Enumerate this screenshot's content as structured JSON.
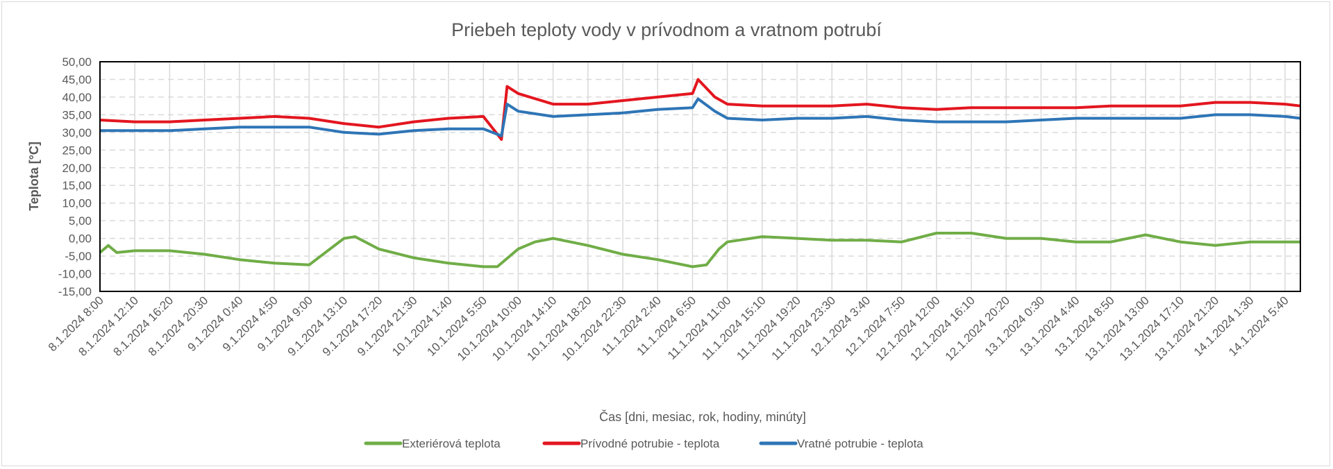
{
  "chart_data": {
    "type": "line",
    "title": "Priebeh teploty vody v prívodnom a vratnom potrubí",
    "xlabel": "Čas [dni, mesiac, rok, hodiny, minúty]",
    "ylabel": "Teplota [°C]",
    "ylim": [
      -15,
      50
    ],
    "ytick_step": 5,
    "ytick_labels": [
      "50,00",
      "45,00",
      "40,00",
      "35,00",
      "30,00",
      "25,00",
      "20,00",
      "15,00",
      "10,00",
      "5,00",
      "0,00",
      "-5,00",
      "-10,00",
      "-15,00"
    ],
    "xlim": [
      "8.1.2024 8:00",
      "14.1.2024 7:30"
    ],
    "xtick_labels": [
      "8.1.2024 8:00",
      "8.1.2024 12:10",
      "8.1.2024 16:20",
      "8.1.2024 20:30",
      "9.1.2024 0:40",
      "9.1.2024 4:50",
      "9.1.2024 9:00",
      "9.1.2024 13:10",
      "9.1.2024 17:20",
      "9.1.2024 21:30",
      "10.1.2024 1:40",
      "10.1.2024 5:50",
      "10.1.2024 10:00",
      "10.1.2024 14:10",
      "10.1.2024 18:20",
      "10.1.2024 22:30",
      "11.1.2024 2:40",
      "11.1.2024 6:50",
      "11.1.2024 11:00",
      "11.1.2024 15:10",
      "11.1.2024 19:20",
      "11.1.2024 23:30",
      "12.1.2024 3:40",
      "12.1.2024 7:50",
      "12.1.2024 12:00",
      "12.1.2024 16:10",
      "12.1.2024 20:20",
      "13.1.2024 0:30",
      "13.1.2024 4:40",
      "13.1.2024 8:50",
      "13.1.2024 13:00",
      "13.1.2024 17:10",
      "13.1.2024 21:20",
      "14.1.2024 1:30",
      "14.1.2024 5:40"
    ],
    "grid": {
      "horizontal": "dashed",
      "vertical": "solid"
    },
    "legend_position": "bottom",
    "series": [
      {
        "name": "Exteriérová teplota",
        "color": "#70ad47",
        "points": [
          [
            "8.1.2024 8:00",
            -4
          ],
          [
            "8.1.2024 9:00",
            -2
          ],
          [
            "8.1.2024 10:00",
            -4
          ],
          [
            "8.1.2024 12:10",
            -3.5
          ],
          [
            "8.1.2024 16:20",
            -3.5
          ],
          [
            "8.1.2024 20:30",
            -4.5
          ],
          [
            "9.1.2024 0:40",
            -6
          ],
          [
            "9.1.2024 4:50",
            -7
          ],
          [
            "9.1.2024 9:00",
            -7.5
          ],
          [
            "9.1.2024 13:10",
            0
          ],
          [
            "9.1.2024 14:30",
            0.5
          ],
          [
            "9.1.2024 17:20",
            -3
          ],
          [
            "9.1.2024 21:30",
            -5.5
          ],
          [
            "10.1.2024 1:40",
            -7
          ],
          [
            "10.1.2024 5:50",
            -8
          ],
          [
            "10.1.2024 7:30",
            -8
          ],
          [
            "10.1.2024 10:00",
            -3
          ],
          [
            "10.1.2024 12:00",
            -1
          ],
          [
            "10.1.2024 14:10",
            0
          ],
          [
            "10.1.2024 18:20",
            -2
          ],
          [
            "10.1.2024 22:30",
            -4.5
          ],
          [
            "11.1.2024 2:40",
            -6
          ],
          [
            "11.1.2024 6:50",
            -8
          ],
          [
            "11.1.2024 8:30",
            -7.5
          ],
          [
            "11.1.2024 10:00",
            -3
          ],
          [
            "11.1.2024 11:00",
            -1
          ],
          [
            "11.1.2024 15:10",
            0.5
          ],
          [
            "11.1.2024 19:20",
            0
          ],
          [
            "11.1.2024 23:30",
            -0.5
          ],
          [
            "12.1.2024 3:40",
            -0.5
          ],
          [
            "12.1.2024 7:50",
            -1
          ],
          [
            "12.1.2024 12:00",
            1.5
          ],
          [
            "12.1.2024 16:10",
            1.5
          ],
          [
            "12.1.2024 20:20",
            0
          ],
          [
            "13.1.2024 0:30",
            0
          ],
          [
            "13.1.2024 4:40",
            -1
          ],
          [
            "13.1.2024 8:50",
            -1
          ],
          [
            "13.1.2024 13:00",
            1
          ],
          [
            "13.1.2024 17:10",
            -1
          ],
          [
            "13.1.2024 21:20",
            -2
          ],
          [
            "14.1.2024 1:30",
            -1
          ],
          [
            "14.1.2024 5:40",
            -1
          ],
          [
            "14.1.2024 7:30",
            -1
          ]
        ]
      },
      {
        "name": "Prívodné potrubie - teplota",
        "color": "#e3161f",
        "points": [
          [
            "8.1.2024 8:00",
            33.5
          ],
          [
            "8.1.2024 12:10",
            33
          ],
          [
            "8.1.2024 16:20",
            33
          ],
          [
            "8.1.2024 20:30",
            33.5
          ],
          [
            "9.1.2024 0:40",
            34
          ],
          [
            "9.1.2024 4:50",
            34.5
          ],
          [
            "9.1.2024 9:00",
            34
          ],
          [
            "9.1.2024 13:10",
            32.5
          ],
          [
            "9.1.2024 17:20",
            31.5
          ],
          [
            "9.1.2024 21:30",
            33
          ],
          [
            "10.1.2024 1:40",
            34
          ],
          [
            "10.1.2024 5:50",
            34.5
          ],
          [
            "10.1.2024 8:00",
            28
          ],
          [
            "10.1.2024 8:40",
            43
          ],
          [
            "10.1.2024 10:00",
            41
          ],
          [
            "10.1.2024 14:10",
            38
          ],
          [
            "10.1.2024 18:20",
            38
          ],
          [
            "10.1.2024 22:30",
            39
          ],
          [
            "11.1.2024 2:40",
            40
          ],
          [
            "11.1.2024 6:50",
            41
          ],
          [
            "11.1.2024 7:30",
            45
          ],
          [
            "11.1.2024 9:30",
            40
          ],
          [
            "11.1.2024 11:00",
            38
          ],
          [
            "11.1.2024 15:10",
            37.5
          ],
          [
            "11.1.2024 19:20",
            37.5
          ],
          [
            "11.1.2024 23:30",
            37.5
          ],
          [
            "12.1.2024 3:40",
            38
          ],
          [
            "12.1.2024 7:50",
            37
          ],
          [
            "12.1.2024 12:00",
            36.5
          ],
          [
            "12.1.2024 16:10",
            37
          ],
          [
            "12.1.2024 20:20",
            37
          ],
          [
            "13.1.2024 0:30",
            37
          ],
          [
            "13.1.2024 4:40",
            37
          ],
          [
            "13.1.2024 8:50",
            37.5
          ],
          [
            "13.1.2024 13:00",
            37.5
          ],
          [
            "13.1.2024 17:10",
            37.5
          ],
          [
            "13.1.2024 21:20",
            38.5
          ],
          [
            "14.1.2024 1:30",
            38.5
          ],
          [
            "14.1.2024 5:40",
            38
          ],
          [
            "14.1.2024 7:30",
            37.5
          ]
        ]
      },
      {
        "name": "Vratné potrubie - teplota",
        "color": "#2e75b6",
        "points": [
          [
            "8.1.2024 8:00",
            30.5
          ],
          [
            "8.1.2024 12:10",
            30.5
          ],
          [
            "8.1.2024 16:20",
            30.5
          ],
          [
            "8.1.2024 20:30",
            31
          ],
          [
            "9.1.2024 0:40",
            31.5
          ],
          [
            "9.1.2024 4:50",
            31.5
          ],
          [
            "9.1.2024 9:00",
            31.5
          ],
          [
            "9.1.2024 13:10",
            30
          ],
          [
            "9.1.2024 17:20",
            29.5
          ],
          [
            "9.1.2024 21:30",
            30.5
          ],
          [
            "10.1.2024 1:40",
            31
          ],
          [
            "10.1.2024 5:50",
            31
          ],
          [
            "10.1.2024 8:00",
            29
          ],
          [
            "10.1.2024 8:40",
            38
          ],
          [
            "10.1.2024 10:00",
            36
          ],
          [
            "10.1.2024 14:10",
            34.5
          ],
          [
            "10.1.2024 18:20",
            35
          ],
          [
            "10.1.2024 22:30",
            35.5
          ],
          [
            "11.1.2024 2:40",
            36.5
          ],
          [
            "11.1.2024 6:50",
            37
          ],
          [
            "11.1.2024 7:30",
            39.5
          ],
          [
            "11.1.2024 9:30",
            36
          ],
          [
            "11.1.2024 11:00",
            34
          ],
          [
            "11.1.2024 15:10",
            33.5
          ],
          [
            "11.1.2024 19:20",
            34
          ],
          [
            "11.1.2024 23:30",
            34
          ],
          [
            "12.1.2024 3:40",
            34.5
          ],
          [
            "12.1.2024 7:50",
            33.5
          ],
          [
            "12.1.2024 12:00",
            33
          ],
          [
            "12.1.2024 16:10",
            33
          ],
          [
            "12.1.2024 20:20",
            33
          ],
          [
            "13.1.2024 0:30",
            33.5
          ],
          [
            "13.1.2024 4:40",
            34
          ],
          [
            "13.1.2024 8:50",
            34
          ],
          [
            "13.1.2024 13:00",
            34
          ],
          [
            "13.1.2024 17:10",
            34
          ],
          [
            "13.1.2024 21:20",
            35
          ],
          [
            "14.1.2024 1:30",
            35
          ],
          [
            "14.1.2024 5:40",
            34.5
          ],
          [
            "14.1.2024 7:30",
            34
          ]
        ]
      }
    ]
  }
}
